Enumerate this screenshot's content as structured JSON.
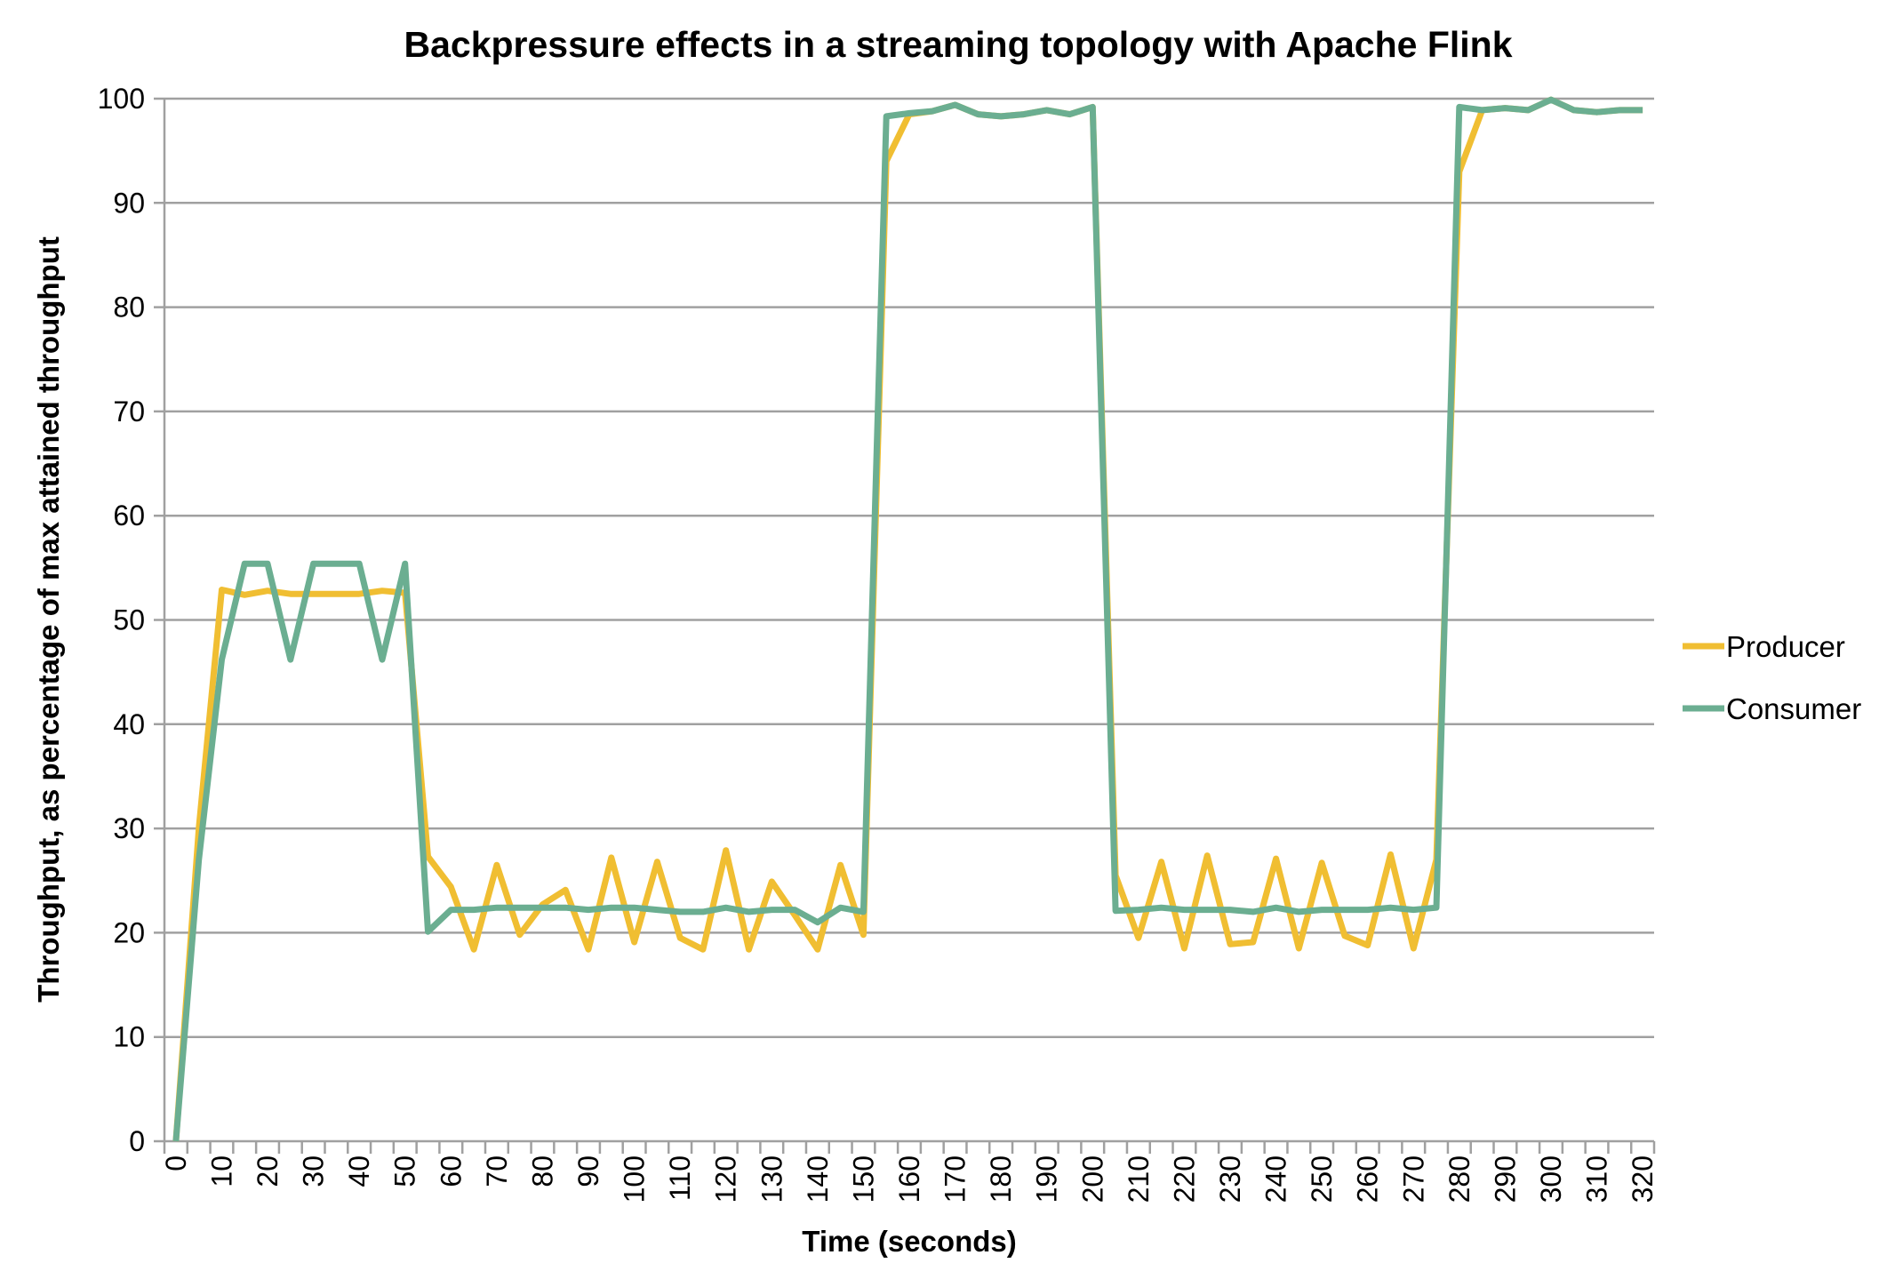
{
  "chart_data": {
    "type": "line",
    "title": "Backpressure effects in a streaming topology with Apache Flink",
    "xlabel": "Time (seconds)",
    "ylabel": "Throughput, as percentage of max attained throughput",
    "ylim": [
      0,
      100
    ],
    "yticks": [
      0,
      10,
      20,
      30,
      40,
      50,
      60,
      70,
      80,
      90,
      100
    ],
    "x": [
      0,
      5,
      10,
      15,
      20,
      25,
      30,
      35,
      40,
      45,
      50,
      55,
      60,
      65,
      70,
      75,
      80,
      85,
      90,
      95,
      100,
      105,
      110,
      115,
      120,
      125,
      130,
      135,
      140,
      145,
      150,
      155,
      160,
      165,
      170,
      175,
      180,
      185,
      190,
      195,
      200,
      205,
      210,
      215,
      220,
      225,
      230,
      235,
      240,
      245,
      250,
      255,
      260,
      265,
      270,
      275,
      280,
      285,
      290,
      295,
      300,
      305,
      310,
      315,
      320
    ],
    "xtick_labels": [
      "0",
      "10",
      "20",
      "30",
      "40",
      "50",
      "60",
      "70",
      "80",
      "90",
      "100",
      "110",
      "120",
      "130",
      "140",
      "150",
      "160",
      "170",
      "180",
      "190",
      "200",
      "210",
      "220",
      "230",
      "240",
      "250",
      "260",
      "270",
      "280",
      "290",
      "300",
      "310",
      "320"
    ],
    "grid": true,
    "legend_position": "right",
    "series": [
      {
        "name": "Producer",
        "color": "#F0BE32",
        "values": [
          0,
          30,
          52.9,
          52.4,
          52.8,
          52.5,
          52.5,
          52.5,
          52.5,
          52.8,
          52.6,
          27.3,
          24.4,
          18.4,
          26.5,
          19.8,
          22.7,
          24.1,
          18.4,
          27.2,
          19.1,
          26.8,
          19.5,
          18.4,
          27.9,
          18.4,
          24.9,
          21.7,
          18.4,
          26.5,
          19.8,
          94,
          98.5,
          98.8,
          99.4,
          98.5,
          98.3,
          98.5,
          98.9,
          98.5,
          99.2,
          25.5,
          19.5,
          26.8,
          18.5,
          27.4,
          18.9,
          19.1,
          27.1,
          18.5,
          26.7,
          19.7,
          18.8,
          27.5,
          18.5,
          27,
          93,
          98.9,
          99.1,
          98.9,
          99.9,
          98.9,
          98.7,
          98.9,
          98.9
        ]
      },
      {
        "name": "Consumer",
        "color": "#6BAE91",
        "values": [
          0,
          27,
          46.2,
          55.4,
          55.4,
          46.2,
          55.4,
          55.4,
          55.4,
          46.2,
          55.4,
          20.1,
          22.2,
          22.2,
          22.4,
          22.4,
          22.4,
          22.4,
          22.2,
          22.4,
          22.4,
          22.2,
          22.0,
          22.0,
          22.4,
          22.0,
          22.2,
          22.2,
          21.0,
          22.4,
          22.0,
          98.3,
          98.6,
          98.8,
          99.4,
          98.5,
          98.3,
          98.5,
          98.9,
          98.5,
          99.2,
          22.1,
          22.2,
          22.4,
          22.2,
          22.2,
          22.2,
          22.0,
          22.4,
          22.0,
          22.2,
          22.2,
          22.2,
          22.4,
          22.2,
          22.4,
          99.2,
          98.9,
          99.1,
          98.9,
          99.9,
          98.9,
          98.7,
          98.9,
          98.9
        ]
      }
    ]
  }
}
